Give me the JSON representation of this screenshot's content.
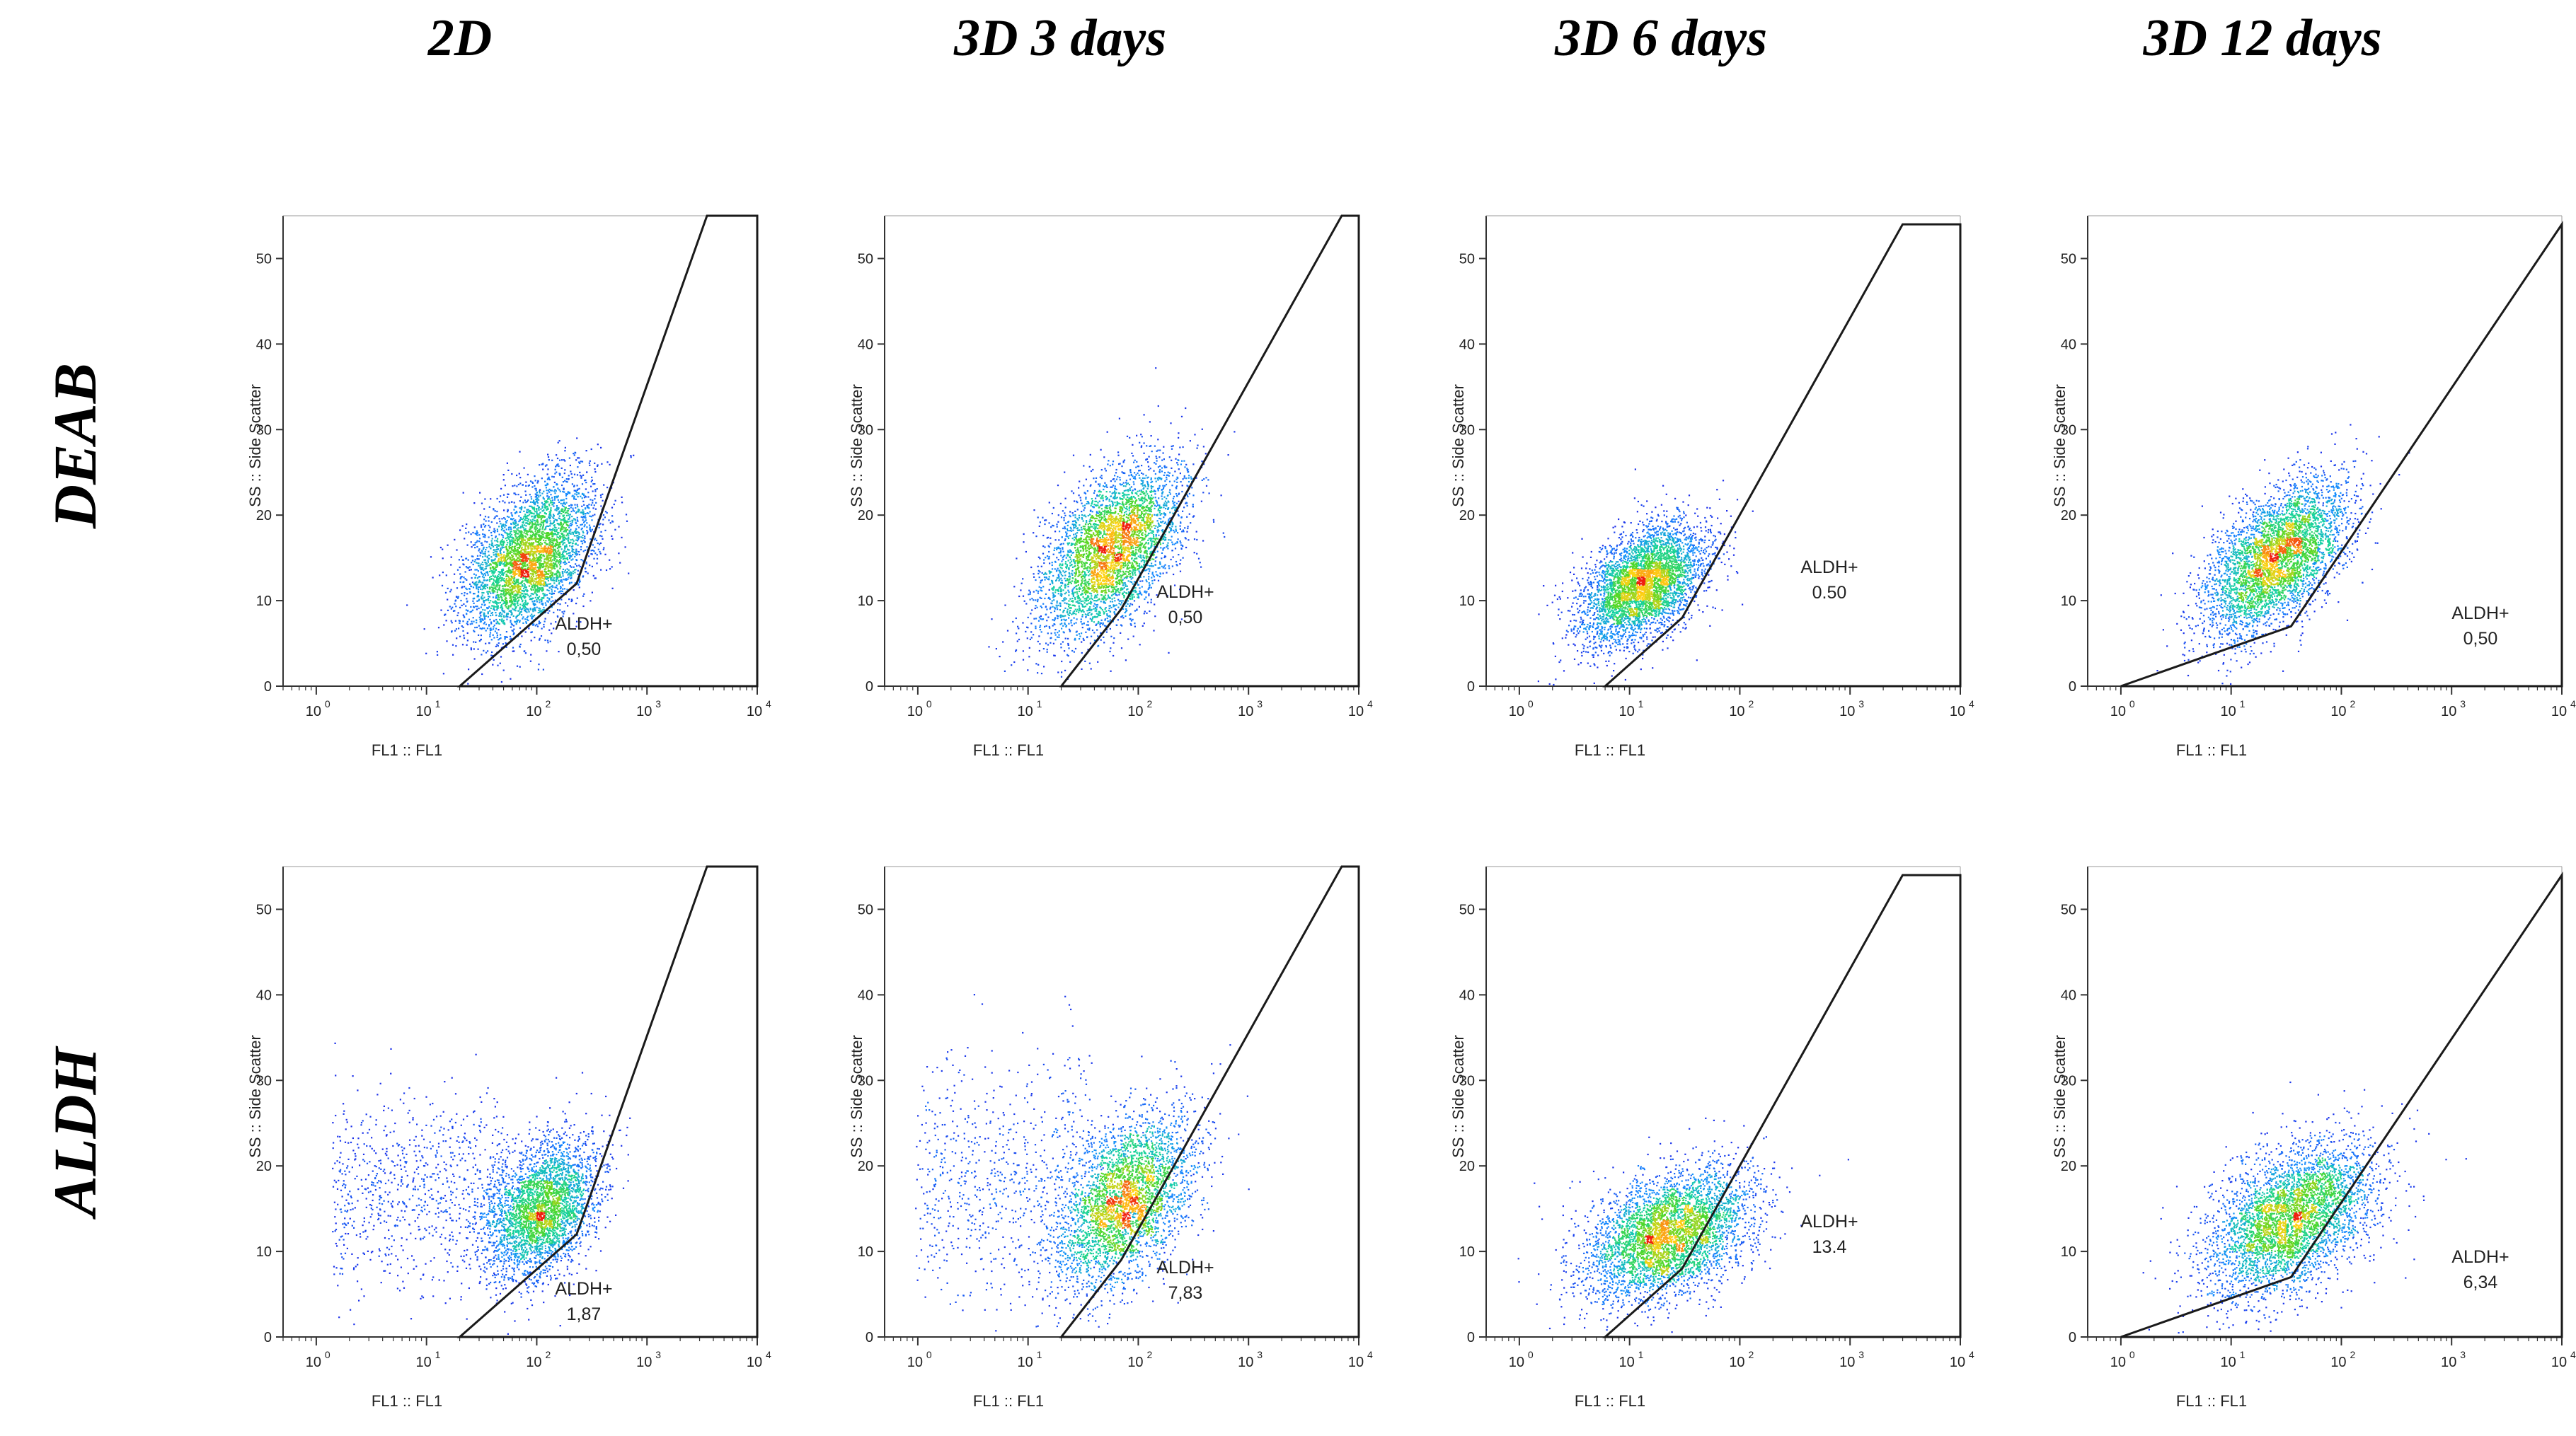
{
  "column_headers": [
    "2D",
    "3D 3 days",
    "3D 6 days",
    "3D 12 days"
  ],
  "row_headers": [
    "DEAB",
    "ALDH"
  ],
  "chart_data": [
    {
      "type": "scatter",
      "row": "DEAB",
      "column": "2D",
      "xlabel": "FL1 :: FL1",
      "ylabel": "SS :: Side Scatter",
      "xscale": "log",
      "xlim": [
        0.5,
        10000
      ],
      "ylim": [
        0,
        55
      ],
      "yticks": [
        "0",
        "10",
        "20",
        "30",
        "40",
        "50"
      ],
      "xticks": [
        "10",
        "10",
        "10",
        "10",
        "10"
      ],
      "xtick_exponents": [
        "0",
        "1",
        "2",
        "3",
        "4"
      ],
      "gate": {
        "name": "ALDH+",
        "value": "0,50",
        "vertices": [
          [
            20,
            0
          ],
          [
            230,
            12
          ],
          [
            3500,
            55
          ],
          [
            10000,
            55
          ],
          [
            10000,
            0
          ]
        ]
      },
      "population": {
        "center_x": 85,
        "center_y": 15,
        "sd_log10_x": 0.3,
        "sd_y": 4.5,
        "corr": 0.45,
        "tail": 0
      }
    },
    {
      "type": "scatter",
      "row": "DEAB",
      "column": "3D 3 days",
      "xlabel": "FL1 :: FL1",
      "ylabel": "SS :: Side Scatter",
      "xscale": "log",
      "xlim": [
        0.5,
        10000
      ],
      "ylim": [
        0,
        55
      ],
      "yticks": [
        "0",
        "10",
        "20",
        "30",
        "40",
        "50"
      ],
      "xticks": [
        "10",
        "10",
        "10",
        "10",
        "10"
      ],
      "xtick_exponents": [
        "0",
        "1",
        "2",
        "3",
        "4"
      ],
      "gate": {
        "name": "ALDH+",
        "value": "0,50",
        "vertices": [
          [
            20,
            0
          ],
          [
            70,
            9
          ],
          [
            7000,
            55
          ],
          [
            10000,
            55
          ],
          [
            10000,
            0
          ]
        ]
      },
      "population": {
        "center_x": 55,
        "center_y": 16,
        "sd_log10_x": 0.32,
        "sd_y": 5,
        "corr": 0.5,
        "tail": 0
      }
    },
    {
      "type": "scatter",
      "row": "DEAB",
      "column": "3D 6 days",
      "xlabel": "FL1 :: FL1",
      "ylabel": "SS :: Side Scatter",
      "xscale": "log",
      "xlim": [
        0.5,
        10000
      ],
      "ylim": [
        0,
        55
      ],
      "yticks": [
        "0",
        "10",
        "20",
        "30",
        "40",
        "50"
      ],
      "xticks": [
        "10",
        "10",
        "10",
        "10",
        "10"
      ],
      "xtick_exponents": [
        "0",
        "1",
        "2",
        "3",
        "4"
      ],
      "gate": {
        "name": "ALDH+",
        "value": "0.50",
        "vertices": [
          [
            6,
            0
          ],
          [
            30,
            8
          ],
          [
            3000,
            54
          ],
          [
            10000,
            54
          ],
          [
            10000,
            0
          ]
        ]
      },
      "population": {
        "center_x": 13,
        "center_y": 12,
        "sd_log10_x": 0.28,
        "sd_y": 3.5,
        "corr": 0.45,
        "tail": 0
      }
    },
    {
      "type": "scatter",
      "row": "DEAB",
      "column": "3D 12 days",
      "xlabel": "FL1 :: FL1",
      "ylabel": "SS :: Side Scatter",
      "xscale": "log",
      "xlim": [
        0.5,
        10000
      ],
      "ylim": [
        0,
        55
      ],
      "yticks": [
        "0",
        "10",
        "20",
        "30",
        "40",
        "50"
      ],
      "xticks": [
        "10",
        "10",
        "10",
        "10",
        "10"
      ],
      "xtick_exponents": [
        "0",
        "1",
        "2",
        "3",
        "4"
      ],
      "gate": {
        "name": "ALDH+",
        "value": "0,50",
        "vertices": [
          [
            1,
            0
          ],
          [
            35,
            7
          ],
          [
            10000,
            54
          ],
          [
            10000,
            0
          ]
        ]
      },
      "population": {
        "center_x": 25,
        "center_y": 15,
        "sd_log10_x": 0.32,
        "sd_y": 4.5,
        "corr": 0.55,
        "tail": 0
      }
    },
    {
      "type": "scatter",
      "row": "ALDH",
      "column": "2D",
      "xlabel": "FL1 :: FL1",
      "ylabel": "SS :: Side Scatter",
      "xscale": "log",
      "xlim": [
        0.5,
        10000
      ],
      "ylim": [
        0,
        55
      ],
      "yticks": [
        "0",
        "10",
        "20",
        "30",
        "40",
        "50"
      ],
      "xticks": [
        "10",
        "10",
        "10",
        "10",
        "10"
      ],
      "xtick_exponents": [
        "0",
        "1",
        "2",
        "3",
        "4"
      ],
      "gate": {
        "name": "ALDH+",
        "value": "1,87",
        "vertices": [
          [
            20,
            0
          ],
          [
            230,
            12
          ],
          [
            3500,
            55
          ],
          [
            10000,
            55
          ],
          [
            10000,
            0
          ]
        ]
      },
      "population": {
        "center_x": 110,
        "center_y": 15,
        "sd_log10_x": 0.25,
        "sd_y": 4,
        "corr": 0.35,
        "tail": 0.22
      }
    },
    {
      "type": "scatter",
      "row": "ALDH",
      "column": "3D 3 days",
      "xlabel": "FL1 :: FL1",
      "ylabel": "SS :: Side Scatter",
      "xscale": "log",
      "xlim": [
        0.5,
        10000
      ],
      "ylim": [
        0,
        55
      ],
      "yticks": [
        "0",
        "10",
        "20",
        "30",
        "40",
        "50"
      ],
      "xticks": [
        "10",
        "10",
        "10",
        "10",
        "10"
      ],
      "xtick_exponents": [
        "0",
        "1",
        "2",
        "3",
        "4"
      ],
      "gate": {
        "name": "ALDH+",
        "value": "7,83",
        "vertices": [
          [
            20,
            0
          ],
          [
            70,
            9
          ],
          [
            7000,
            55
          ],
          [
            10000,
            55
          ],
          [
            10000,
            0
          ]
        ]
      },
      "population": {
        "center_x": 75,
        "center_y": 16,
        "sd_log10_x": 0.3,
        "sd_y": 5,
        "corr": 0.45,
        "tail": 0.18
      }
    },
    {
      "type": "scatter",
      "row": "ALDH",
      "column": "3D 6 days",
      "xlabel": "FL1 :: FL1",
      "ylabel": "SS :: Side Scatter",
      "xscale": "log",
      "xlim": [
        0.5,
        10000
      ],
      "ylim": [
        0,
        55
      ],
      "yticks": [
        "0",
        "10",
        "20",
        "30",
        "40",
        "50"
      ],
      "xticks": [
        "10",
        "10",
        "10",
        "10",
        "10"
      ],
      "xtick_exponents": [
        "0",
        "1",
        "2",
        "3",
        "4"
      ],
      "gate": {
        "name": "ALDH+",
        "value": "13.4",
        "vertices": [
          [
            6,
            0
          ],
          [
            30,
            8
          ],
          [
            3000,
            54
          ],
          [
            10000,
            54
          ],
          [
            10000,
            0
          ]
        ]
      },
      "population": {
        "center_x": 22,
        "center_y": 12,
        "sd_log10_x": 0.38,
        "sd_y": 3.8,
        "corr": 0.4,
        "tail": 0
      }
    },
    {
      "type": "scatter",
      "row": "ALDH",
      "column": "3D 12 days",
      "xlabel": "FL1 :: FL1",
      "ylabel": "SS :: Side Scatter",
      "xscale": "log",
      "xlim": [
        0.5,
        10000
      ],
      "ylim": [
        0,
        55
      ],
      "yticks": [
        "0",
        "10",
        "20",
        "30",
        "40",
        "50"
      ],
      "xticks": [
        "10",
        "10",
        "10",
        "10",
        "10"
      ],
      "xtick_exponents": [
        "0",
        "1",
        "2",
        "3",
        "4"
      ],
      "gate": {
        "name": "ALDH+",
        "value": "6,34",
        "vertices": [
          [
            1,
            0
          ],
          [
            35,
            7
          ],
          [
            10000,
            54
          ],
          [
            10000,
            0
          ]
        ]
      },
      "population": {
        "center_x": 35,
        "center_y": 14,
        "sd_log10_x": 0.38,
        "sd_y": 4.5,
        "corr": 0.45,
        "tail": 0
      }
    }
  ]
}
